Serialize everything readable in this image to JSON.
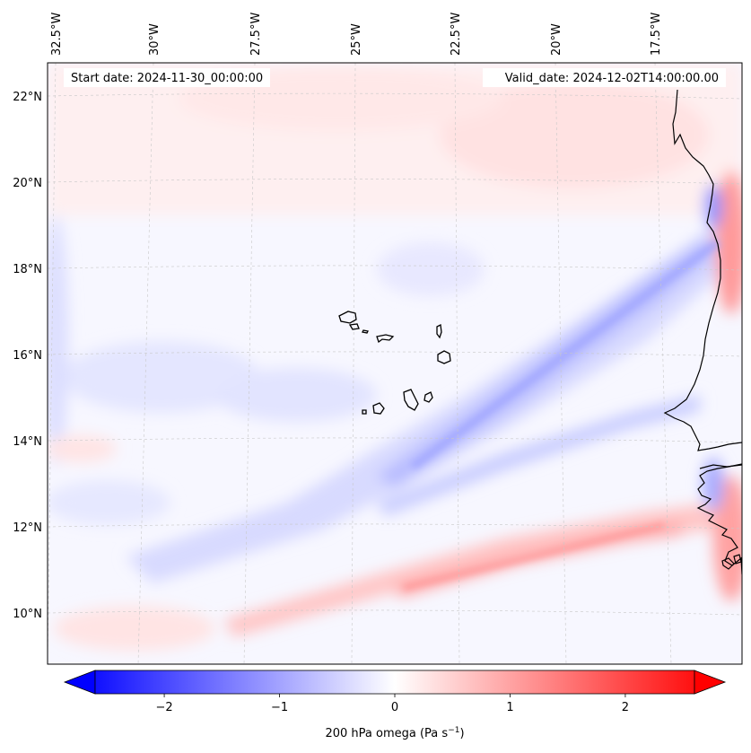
{
  "figure": {
    "start_date_text": "Start date: 2024-11-30_00:00:00",
    "valid_date_text": "Valid_date: 2024-12-02T14:00:00.00",
    "variable": "200 hPa omega",
    "units": "Pa s",
    "units_exponent": "−1"
  },
  "map": {
    "lon_labels": [
      "32.5°W",
      "30°W",
      "27.5°W",
      "25°W",
      "22.5°W",
      "20°W",
      "17.5°W"
    ],
    "lat_labels": [
      "22°N",
      "20°N",
      "18°N",
      "16°N",
      "14°N",
      "12°N",
      "10°N"
    ],
    "features": [
      "cape-verde-islands",
      "west-africa-coastline"
    ]
  },
  "colorbar": {
    "colormap": "bwr",
    "min": -2.6,
    "max": 2.6,
    "extend": "both",
    "ticks": [
      -2,
      -1,
      0,
      1,
      2
    ],
    "tick_labels": [
      "−2",
      "−1",
      "0",
      "1",
      "2"
    ],
    "low_color": "#0000ff",
    "mid_color": "#ffffff",
    "high_color": "#ff0000"
  }
}
